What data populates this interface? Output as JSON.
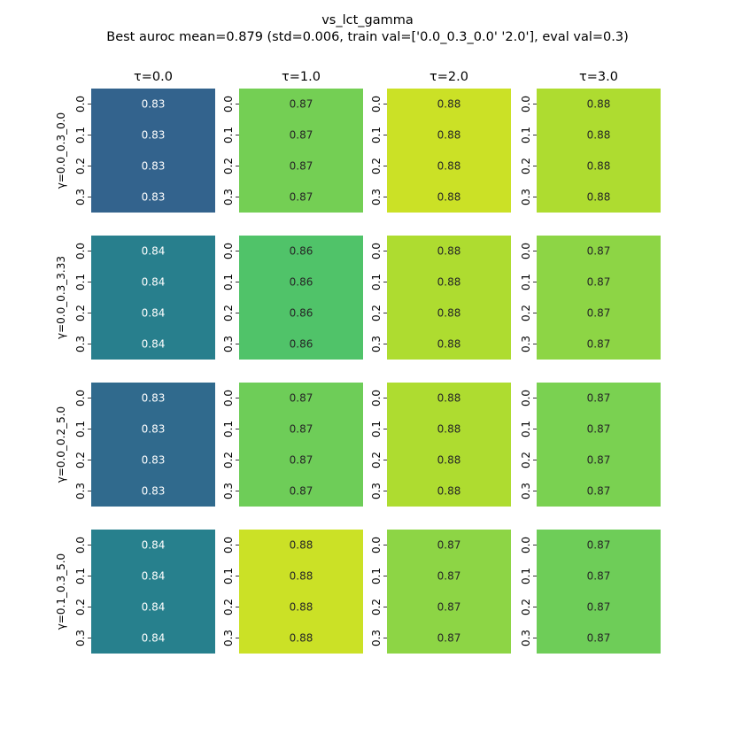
{
  "chart_data": {
    "type": "heatmap",
    "title": "vs_lct_gamma",
    "subtitle": "Best auroc mean=0.879 (std=0.006, train val=['0.0_0.3_0.0' '2.0'], eval val=0.3)",
    "col_titles": [
      "τ=0.0",
      "τ=1.0",
      "τ=2.0",
      "τ=3.0"
    ],
    "row_titles": [
      "γ=0.0_0.3_0.0",
      "γ=0.0_0.3_3.33",
      "γ=0.0_0.2_5.0",
      "γ=0.1_0.3_5.0"
    ],
    "y_ticks": [
      "0.0",
      "0.1",
      "0.2",
      "0.3"
    ],
    "colormap": "viridis",
    "color_range": [
      0.8,
      0.89
    ],
    "values": [
      [
        [
          0.8285,
          0.8285,
          0.8285,
          0.8285
        ],
        [
          0.871,
          0.871,
          0.871,
          0.871
        ],
        [
          0.883,
          0.883,
          0.883,
          0.883
        ],
        [
          0.879,
          0.879,
          0.879,
          0.879
        ]
      ],
      [
        [
          0.8385,
          0.8385,
          0.8385,
          0.8385
        ],
        [
          0.865,
          0.865,
          0.865,
          0.865
        ],
        [
          0.879,
          0.879,
          0.879,
          0.879
        ],
        [
          0.8745,
          0.8745,
          0.8745,
          0.8745
        ]
      ],
      [
        [
          0.831,
          0.831,
          0.831,
          0.831
        ],
        [
          0.87,
          0.87,
          0.87,
          0.87
        ],
        [
          0.879,
          0.879,
          0.879,
          0.879
        ],
        [
          0.872,
          0.872,
          0.872,
          0.872
        ]
      ],
      [
        [
          0.839,
          0.839,
          0.839,
          0.839
        ],
        [
          0.883,
          0.883,
          0.883,
          0.883
        ],
        [
          0.8745,
          0.8745,
          0.8745,
          0.8745
        ],
        [
          0.87,
          0.87,
          0.87,
          0.87
        ]
      ]
    ],
    "annotation_format": "2 decimals"
  }
}
